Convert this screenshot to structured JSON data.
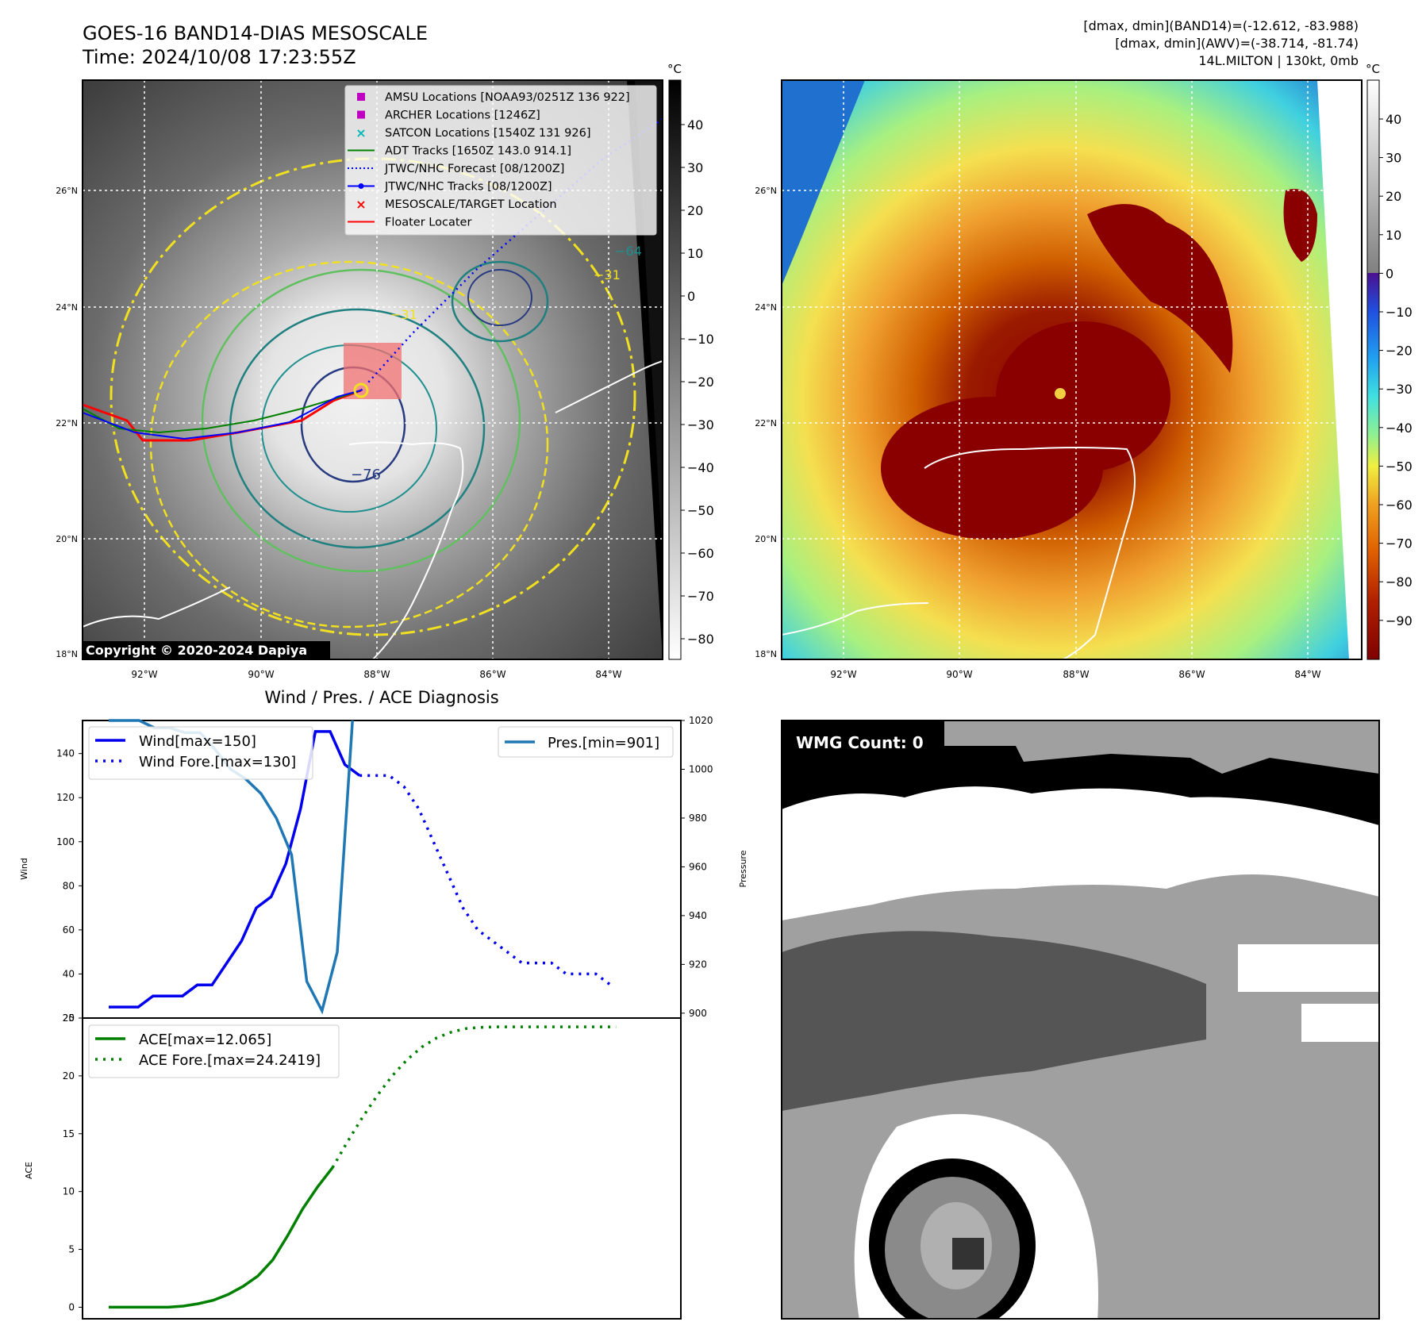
{
  "header": {
    "title_line1": "GOES-16 BAND14-DIAS MESOSCALE",
    "title_line2": "Time: 2024/10/08 17:23:55Z",
    "info_line1": "[dmax, dmin](BAND14)=(-12.612, -83.988)",
    "info_line2": "[dmax, dmin](AWV)=(-38.714, -81.74)",
    "info_line3": "14L.MILTON | 130kt, 0mb"
  },
  "maps": {
    "unit": "°C",
    "lat_labels": [
      "26°N",
      "24°N",
      "22°N",
      "20°N",
      "18°N"
    ],
    "lon_labels": [
      "92°W",
      "90°W",
      "88°W",
      "86°W",
      "84°W"
    ],
    "copyright": "Copyright © 2020-2024 Dapiya",
    "ir_colorbar_ticks": [
      "40",
      "30",
      "20",
      "10",
      "0",
      "−10",
      "−20",
      "−30",
      "−40",
      "−50",
      "−60",
      "−70",
      "−80"
    ],
    "awv_colorbar_ticks": [
      "40",
      "30",
      "20",
      "10",
      "0",
      "−10",
      "−20",
      "−30",
      "−40",
      "−50",
      "−60",
      "−70",
      "−80",
      "−90"
    ],
    "contour_labels": [
      "−76",
      "−64",
      "−31",
      "−31",
      "−64",
      "−76"
    ],
    "legend": [
      {
        "label": "AMSU Locations [NOAA93/0251Z 136 922]",
        "marker": "square",
        "color": "#c000c0"
      },
      {
        "label": "ARCHER Locations [1246Z]",
        "marker": "square",
        "color": "#c000c0"
      },
      {
        "label": "SATCON Locations [1540Z 131 926]",
        "marker": "x",
        "color": "#00b8b8"
      },
      {
        "label": "ADT Tracks [1650Z 143.0 914.1]",
        "marker": "line",
        "color": "#008000"
      },
      {
        "label": "JTWC/NHC Forecast [08/1200Z]",
        "marker": "dotted",
        "color": "#0000ff"
      },
      {
        "label": "JTWC/NHC Tracks [08/1200Z]",
        "marker": "line-dot",
        "color": "#0000ff"
      },
      {
        "label": "MESOSCALE/TARGET Location",
        "marker": "x",
        "color": "#ff0000"
      },
      {
        "label": "Floater Locater",
        "marker": "line",
        "color": "#ff0000"
      }
    ]
  },
  "diagnosis": {
    "title": "Wind / Pres. / ACE Diagnosis",
    "wmg_label": "WMG Count: 0"
  },
  "chart_data": [
    {
      "type": "line",
      "title": "Wind / Pres. / ACE Diagnosis",
      "ylabel": "Wind",
      "ylabel_right": "Pressure",
      "ylim": [
        20,
        155
      ],
      "ylim_right": [
        898,
        1020
      ],
      "yticks": [
        20,
        40,
        60,
        80,
        100,
        120,
        140
      ],
      "yticks_right": [
        900,
        920,
        940,
        960,
        980,
        1000,
        1020
      ],
      "series": [
        {
          "name": "Wind[max=150]",
          "style": "solid",
          "color": "#0000ee",
          "axis": "left",
          "values": [
            25,
            25,
            25,
            30,
            30,
            30,
            35,
            35,
            45,
            55,
            70,
            75,
            90,
            115,
            150,
            150,
            135,
            130
          ]
        },
        {
          "name": "Wind Fore.[max=130]",
          "style": "dotted",
          "color": "#0000ee",
          "axis": "left",
          "offset": 17,
          "values": [
            130,
            130,
            130,
            125,
            115,
            100,
            85,
            70,
            60,
            55,
            50,
            45,
            45,
            45,
            40,
            40,
            40,
            35
          ]
        },
        {
          "name": "Pres.[min=901]",
          "style": "solid",
          "color": "#1f77b4",
          "axis": "right",
          "values": [
            1020,
            1020,
            1020,
            1017,
            1017,
            1015,
            1015,
            1008,
            1000,
            996,
            990,
            980,
            965,
            913,
            901,
            925,
            1020
          ]
        }
      ]
    },
    {
      "type": "line",
      "ylabel": "ACE",
      "ylim": [
        -1,
        25
      ],
      "yticks": [
        0,
        5,
        10,
        15,
        20,
        25
      ],
      "series": [
        {
          "name": "ACE[max=12.065]",
          "style": "solid",
          "color": "#008000",
          "values": [
            0,
            0,
            0,
            0,
            0,
            0.1,
            0.3,
            0.6,
            1.1,
            1.8,
            2.7,
            4.1,
            6.2,
            8.5,
            10.4,
            12.065
          ]
        },
        {
          "name": "ACE Fore.[max=24.2419]",
          "style": "dotted",
          "color": "#008000",
          "offset": 15,
          "values": [
            12.065,
            14.3,
            16.4,
            18.3,
            20.0,
            21.4,
            22.5,
            23.3,
            23.8,
            24.1,
            24.2,
            24.24,
            24.2419,
            24.2419,
            24.2419,
            24.2419,
            24.2419,
            24.2419,
            24.2419,
            24.2419
          ]
        }
      ]
    }
  ]
}
